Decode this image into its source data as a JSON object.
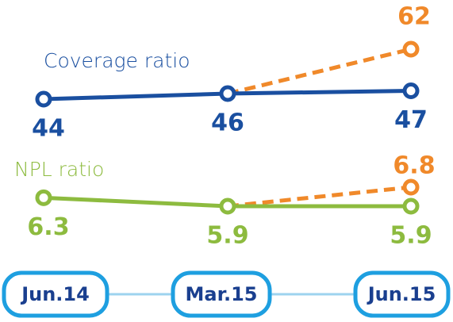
{
  "chart_data": [
    {
      "type": "line",
      "categories": [
        "Jun.14",
        "Mar.15",
        "Jun.15"
      ],
      "series": [
        {
          "name": "Coverage ratio",
          "color": "#1a4fa0",
          "values": [
            44,
            46,
            47
          ]
        },
        {
          "color": "#f0892a",
          "dashed": true,
          "values": [
            null,
            null,
            62
          ]
        }
      ]
    },
    {
      "type": "line",
      "series": [
        {
          "name": "NPL ratio",
          "color": "#8dbb3f",
          "values": [
            6.3,
            5.9,
            5.9
          ]
        },
        {
          "color": "#f0892a",
          "dashed": true,
          "values": [
            null,
            null,
            6.8
          ]
        }
      ]
    }
  ]
}
